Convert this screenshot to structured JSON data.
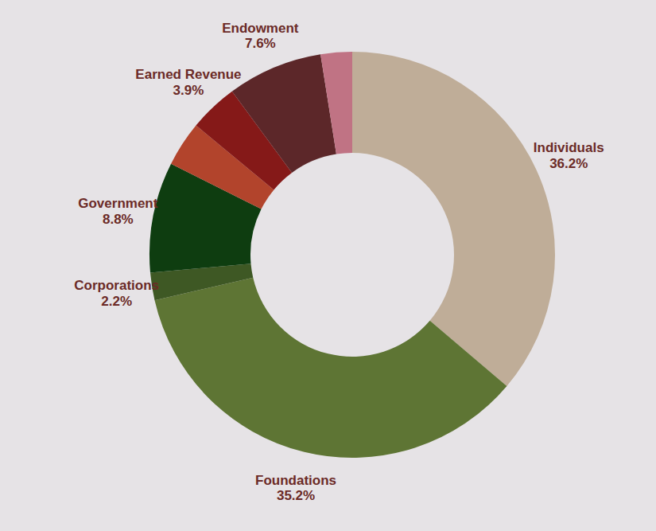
{
  "chart_data": {
    "type": "donut",
    "categories": [
      "Individuals",
      "Foundations",
      "Corporations",
      "Government",
      null,
      "Earned Revenue",
      "Endowment",
      null
    ],
    "values": [
      36.2,
      35.2,
      2.2,
      8.8,
      3.6,
      3.9,
      7.6,
      2.5
    ],
    "value_labels": [
      "36.2%",
      "35.2%",
      "2.2%",
      "8.8%",
      null,
      "3.9%",
      "7.6%",
      null
    ],
    "colors": [
      "#bfad98",
      "#5e7534",
      "#3e5824",
      "#0e3d10",
      "#b2442c",
      "#851918",
      "#5c2729",
      "#c07384"
    ],
    "data_labels": true
  }
}
